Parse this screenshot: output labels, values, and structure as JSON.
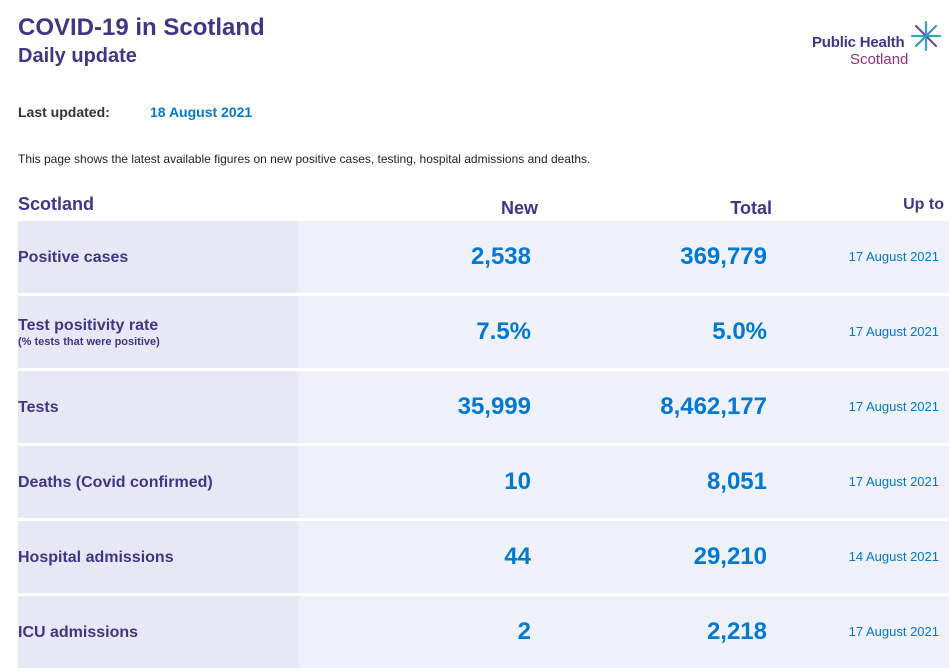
{
  "header": {
    "title": "COVID-19 in Scotland",
    "subtitle": "Daily update",
    "logo_line1": "Public Health",
    "logo_line2": "Scotland",
    "logo_icon": "star-icon"
  },
  "last_updated": {
    "label": "Last updated:",
    "value": "18 August 2021"
  },
  "intro": "This page shows the latest available figures on new positive cases, testing, hospital admissions and deaths.",
  "table": {
    "columns": {
      "region": "Scotland",
      "new": "New",
      "total": "Total",
      "up_to": "Up to"
    },
    "rows": [
      {
        "label": "Positive cases",
        "sublabel": "",
        "new": "2,538",
        "total": "369,779",
        "up_to": "17 August 2021"
      },
      {
        "label": "Test positivity rate",
        "sublabel": "(% tests that were positive)",
        "new": "7.5%",
        "total": "5.0%",
        "up_to": "17 August 2021"
      },
      {
        "label": "Tests",
        "sublabel": "",
        "new": "35,999",
        "total": "8,462,177",
        "up_to": "17 August 2021"
      },
      {
        "label": "Deaths (Covid confirmed)",
        "sublabel": "",
        "new": "10",
        "total": "8,051",
        "up_to": "17 August 2021"
      },
      {
        "label": "Hospital admissions",
        "sublabel": "",
        "new": "44",
        "total": "29,210",
        "up_to": "14 August 2021"
      },
      {
        "label": "ICU admissions",
        "sublabel": "",
        "new": "2",
        "total": "2,218",
        "up_to": "17 August 2021"
      }
    ]
  },
  "colors": {
    "heading": "#3f3685",
    "value": "#0078d4",
    "row_bg": "#eef1f9",
    "label_bg": "#e6e9f5",
    "logo_accent": "#9b2d86"
  }
}
